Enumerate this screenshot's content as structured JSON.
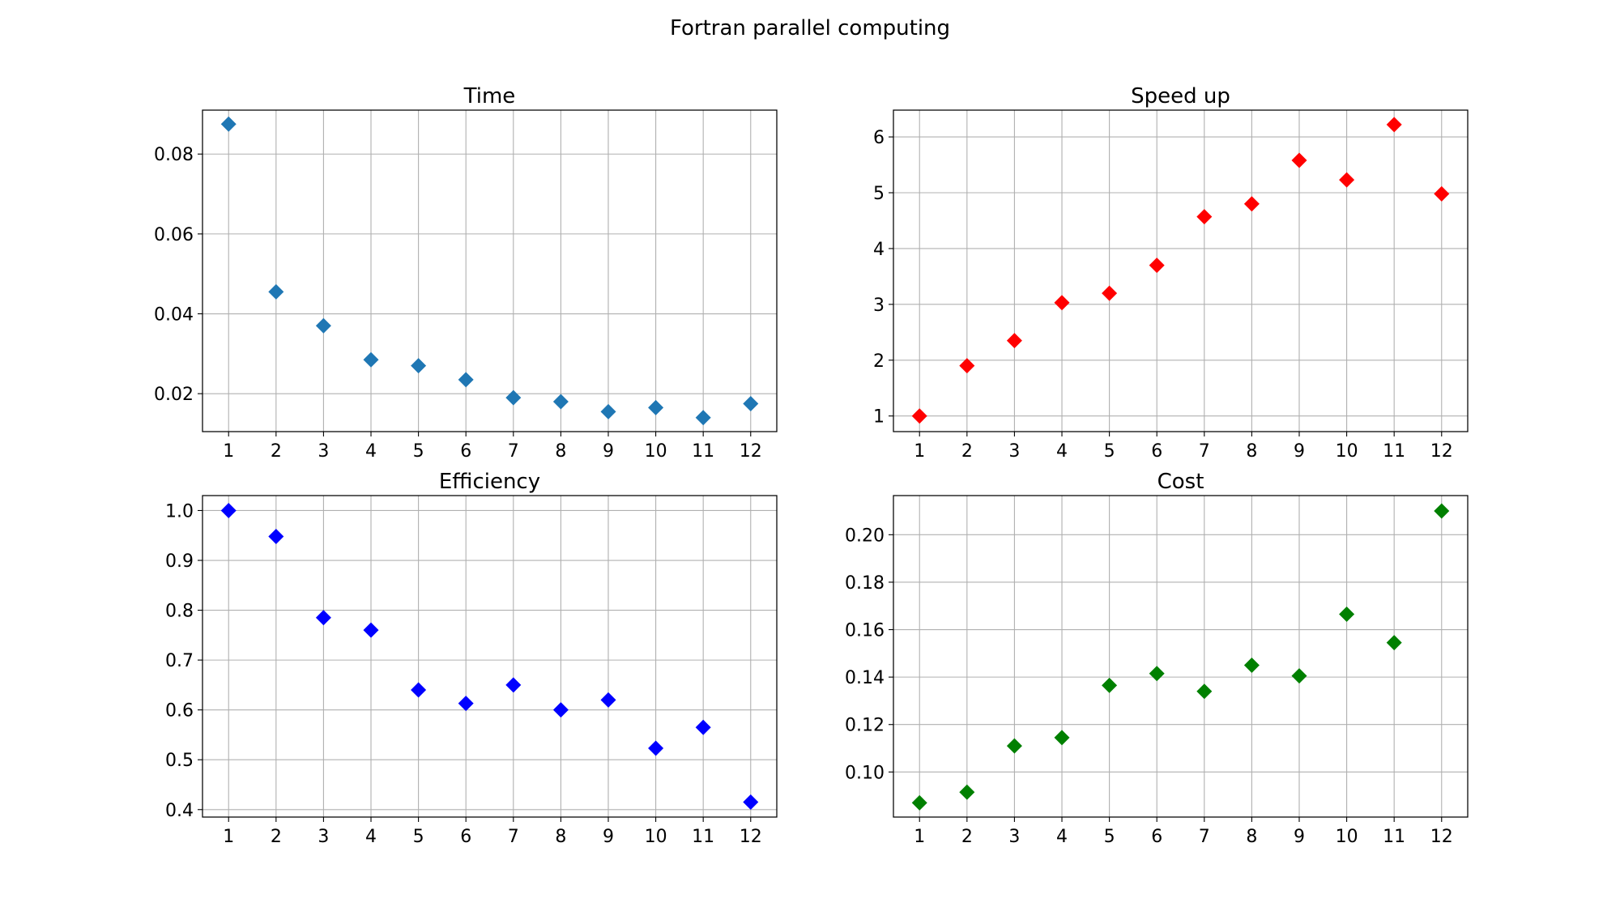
{
  "suptitle": "Fortran parallel computing",
  "chart_data": [
    {
      "type": "scatter",
      "title": "Time",
      "marker": "diamond",
      "color": "#1f77b4",
      "grid": true,
      "x": [
        1,
        2,
        3,
        4,
        5,
        6,
        7,
        8,
        9,
        10,
        11,
        12
      ],
      "y": [
        0.0875,
        0.0455,
        0.037,
        0.0285,
        0.027,
        0.0235,
        0.019,
        0.018,
        0.0155,
        0.0165,
        0.014,
        0.0175
      ],
      "xlim": [
        0.45,
        12.55
      ],
      "ylim": [
        0.0105,
        0.091
      ],
      "xticks": [
        1,
        2,
        3,
        4,
        5,
        6,
        7,
        8,
        9,
        10,
        11,
        12
      ],
      "yticks": [
        0.02,
        0.04,
        0.06,
        0.08
      ],
      "yticklabels": [
        "0.02",
        "0.04",
        "0.06",
        "0.08"
      ],
      "xlabel": "",
      "ylabel": ""
    },
    {
      "type": "scatter",
      "title": "Speed up",
      "marker": "diamond",
      "color": "#ff0000",
      "grid": true,
      "x": [
        1,
        2,
        3,
        4,
        5,
        6,
        7,
        8,
        9,
        10,
        11,
        12
      ],
      "y": [
        1.0,
        1.9,
        2.35,
        3.03,
        3.2,
        3.7,
        4.57,
        4.8,
        5.58,
        5.23,
        6.22,
        4.98
      ],
      "xlim": [
        0.45,
        12.55
      ],
      "ylim": [
        0.72,
        6.48
      ],
      "xticks": [
        1,
        2,
        3,
        4,
        5,
        6,
        7,
        8,
        9,
        10,
        11,
        12
      ],
      "yticks": [
        1,
        2,
        3,
        4,
        5,
        6
      ],
      "yticklabels": [
        "1",
        "2",
        "3",
        "4",
        "5",
        "6"
      ],
      "xlabel": "",
      "ylabel": ""
    },
    {
      "type": "scatter",
      "title": "Efficiency",
      "marker": "diamond",
      "color": "#0000ff",
      "grid": true,
      "x": [
        1,
        2,
        3,
        4,
        5,
        6,
        7,
        8,
        9,
        10,
        11,
        12
      ],
      "y": [
        1.0,
        0.948,
        0.785,
        0.76,
        0.64,
        0.613,
        0.65,
        0.6,
        0.62,
        0.523,
        0.565,
        0.415
      ],
      "xlim": [
        0.45,
        12.55
      ],
      "ylim": [
        0.385,
        1.03
      ],
      "xticks": [
        1,
        2,
        3,
        4,
        5,
        6,
        7,
        8,
        9,
        10,
        11,
        12
      ],
      "yticks": [
        0.4,
        0.5,
        0.6,
        0.7,
        0.8,
        0.9,
        1.0
      ],
      "yticklabels": [
        "0.4",
        "0.5",
        "0.6",
        "0.7",
        "0.8",
        "0.9",
        "1.0"
      ],
      "xlabel": "",
      "ylabel": ""
    },
    {
      "type": "scatter",
      "title": "Cost",
      "marker": "diamond",
      "color": "#008000",
      "grid": true,
      "x": [
        1,
        2,
        3,
        4,
        5,
        6,
        7,
        8,
        9,
        10,
        11,
        12
      ],
      "y": [
        0.087,
        0.0915,
        0.111,
        0.1145,
        0.1365,
        0.1415,
        0.134,
        0.145,
        0.1405,
        0.1665,
        0.1545,
        0.21
      ],
      "xlim": [
        0.45,
        12.55
      ],
      "ylim": [
        0.081,
        0.2165
      ],
      "xticks": [
        1,
        2,
        3,
        4,
        5,
        6,
        7,
        8,
        9,
        10,
        11,
        12
      ],
      "yticks": [
        0.1,
        0.12,
        0.14,
        0.16,
        0.18,
        0.2
      ],
      "yticklabels": [
        "0.10",
        "0.12",
        "0.14",
        "0.16",
        "0.18",
        "0.20"
      ],
      "xlabel": "",
      "ylabel": ""
    }
  ]
}
